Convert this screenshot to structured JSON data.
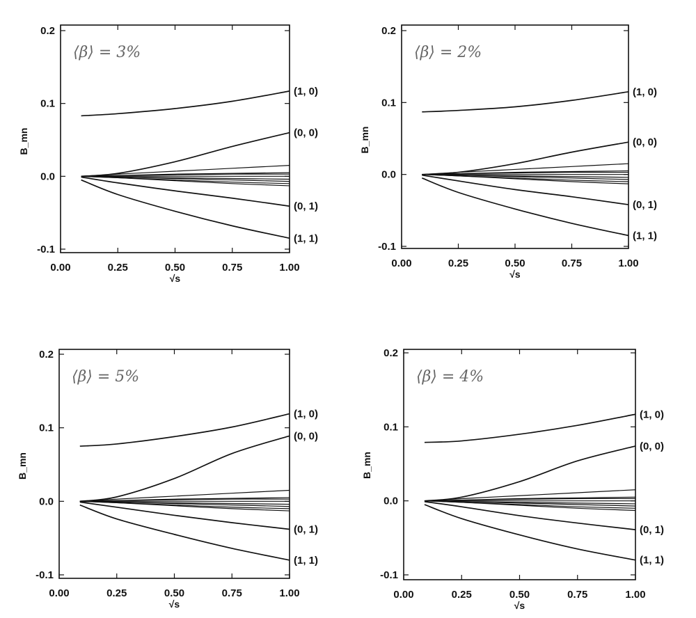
{
  "chart_data": [
    {
      "type": "line",
      "title": "⟨β⟩ = 3%",
      "xlabel": "√s",
      "ylabel": "B_mn",
      "xlim": [
        0,
        1
      ],
      "ylim": [
        -0.1,
        0.2
      ],
      "xticks": [
        "0.00",
        "0.25",
        "0.50",
        "0.75",
        "1.00"
      ],
      "yticks": [
        "-0.1",
        "0.0",
        "0.1",
        "0.2"
      ],
      "x": [
        0.09,
        0.25,
        0.5,
        0.75,
        1.0
      ],
      "series": [
        {
          "name": "(1, 0)",
          "labeled": true,
          "values": [
            0.083,
            0.086,
            0.093,
            0.103,
            0.117
          ]
        },
        {
          "name": "(0, 0)",
          "labeled": true,
          "values": [
            0.0,
            0.004,
            0.02,
            0.041,
            0.06
          ]
        },
        {
          "name": "(0, 1)",
          "labeled": true,
          "values": [
            -0.001,
            -0.009,
            -0.02,
            -0.03,
            -0.041
          ]
        },
        {
          "name": "(1, 1)",
          "labeled": true,
          "values": [
            -0.005,
            -0.025,
            -0.048,
            -0.068,
            -0.085
          ]
        },
        {
          "name": "other",
          "labeled": false,
          "values": [
            0,
            0.003,
            0.007,
            0.011,
            0.015
          ]
        },
        {
          "name": "other",
          "labeled": false,
          "values": [
            0,
            0.001,
            0.003,
            0.004,
            0.005
          ]
        },
        {
          "name": "other",
          "labeled": false,
          "values": [
            0,
            0.001,
            0.002,
            0.003,
            0.003
          ]
        },
        {
          "name": "other",
          "labeled": false,
          "values": [
            0,
            0,
            0,
            0,
            0
          ]
        },
        {
          "name": "other",
          "labeled": false,
          "values": [
            0,
            -0.001,
            -0.002,
            -0.003,
            -0.004
          ]
        },
        {
          "name": "other",
          "labeled": false,
          "values": [
            0,
            -0.001,
            -0.003,
            -0.005,
            -0.007
          ]
        },
        {
          "name": "other",
          "labeled": false,
          "values": [
            0,
            -0.002,
            -0.005,
            -0.008,
            -0.01
          ]
        },
        {
          "name": "other",
          "labeled": false,
          "values": [
            0,
            -0.002,
            -0.006,
            -0.01,
            -0.013
          ]
        }
      ]
    },
    {
      "type": "line",
      "title": "⟨β⟩ = 2%",
      "xlabel": "√s",
      "ylabel": "B_mn",
      "xlim": [
        0,
        1
      ],
      "ylim": [
        -0.1,
        0.2
      ],
      "xticks": [
        "0.00",
        "0.25",
        "0.50",
        "0.75",
        "1.00"
      ],
      "yticks": [
        "-0.1",
        "0.0",
        "0.1",
        "0.2"
      ],
      "x": [
        0.09,
        0.25,
        0.5,
        0.75,
        1.0
      ],
      "series": [
        {
          "name": "(1, 0)",
          "labeled": true,
          "values": [
            0.087,
            0.089,
            0.094,
            0.103,
            0.115
          ]
        },
        {
          "name": "(0, 0)",
          "labeled": true,
          "values": [
            0.0,
            0.003,
            0.015,
            0.031,
            0.045
          ]
        },
        {
          "name": "(0, 1)",
          "labeled": true,
          "values": [
            -0.001,
            -0.009,
            -0.021,
            -0.031,
            -0.042
          ]
        },
        {
          "name": "(1, 1)",
          "labeled": true,
          "values": [
            -0.005,
            -0.025,
            -0.048,
            -0.068,
            -0.085
          ]
        },
        {
          "name": "other",
          "labeled": false,
          "values": [
            0,
            0.003,
            0.007,
            0.011,
            0.015
          ]
        },
        {
          "name": "other",
          "labeled": false,
          "values": [
            0,
            0.001,
            0.003,
            0.004,
            0.005
          ]
        },
        {
          "name": "other",
          "labeled": false,
          "values": [
            0,
            0.001,
            0.002,
            0.003,
            0.003
          ]
        },
        {
          "name": "other",
          "labeled": false,
          "values": [
            0,
            0,
            0,
            0,
            0
          ]
        },
        {
          "name": "other",
          "labeled": false,
          "values": [
            0,
            -0.001,
            -0.002,
            -0.003,
            -0.004
          ]
        },
        {
          "name": "other",
          "labeled": false,
          "values": [
            0,
            -0.001,
            -0.003,
            -0.005,
            -0.007
          ]
        },
        {
          "name": "other",
          "labeled": false,
          "values": [
            0,
            -0.002,
            -0.005,
            -0.008,
            -0.01
          ]
        },
        {
          "name": "other",
          "labeled": false,
          "values": [
            0,
            -0.002,
            -0.006,
            -0.01,
            -0.013
          ]
        }
      ]
    },
    {
      "type": "line",
      "title": "⟨β⟩ = 5%",
      "xlabel": "√s",
      "ylabel": "B_mn",
      "xlim": [
        0,
        1
      ],
      "ylim": [
        -0.1,
        0.2
      ],
      "xticks": [
        "0.00",
        "0.25",
        "0.50",
        "0.75",
        "1.00"
      ],
      "yticks": [
        "-0.1",
        "0.0",
        "0.1",
        "0.2"
      ],
      "x": [
        0.09,
        0.25,
        0.5,
        0.75,
        1.0
      ],
      "series": [
        {
          "name": "(1, 0)",
          "labeled": true,
          "values": [
            0.075,
            0.078,
            0.088,
            0.101,
            0.119
          ]
        },
        {
          "name": "(0, 0)",
          "labeled": true,
          "values": [
            0.0,
            0.006,
            0.031,
            0.065,
            0.089
          ]
        },
        {
          "name": "(0, 1)",
          "labeled": true,
          "values": [
            -0.001,
            -0.008,
            -0.019,
            -0.029,
            -0.038
          ]
        },
        {
          "name": "(1, 1)",
          "labeled": true,
          "values": [
            -0.005,
            -0.024,
            -0.045,
            -0.064,
            -0.08
          ]
        },
        {
          "name": "other",
          "labeled": false,
          "values": [
            0,
            0.003,
            0.007,
            0.011,
            0.015
          ]
        },
        {
          "name": "other",
          "labeled": false,
          "values": [
            0,
            0.001,
            0.003,
            0.004,
            0.005
          ]
        },
        {
          "name": "other",
          "labeled": false,
          "values": [
            0,
            0.001,
            0.002,
            0.003,
            0.003
          ]
        },
        {
          "name": "other",
          "labeled": false,
          "values": [
            0,
            0,
            0,
            0,
            0
          ]
        },
        {
          "name": "other",
          "labeled": false,
          "values": [
            0,
            -0.001,
            -0.002,
            -0.003,
            -0.004
          ]
        },
        {
          "name": "other",
          "labeled": false,
          "values": [
            0,
            -0.001,
            -0.003,
            -0.005,
            -0.007
          ]
        },
        {
          "name": "other",
          "labeled": false,
          "values": [
            0,
            -0.002,
            -0.005,
            -0.008,
            -0.01
          ]
        },
        {
          "name": "other",
          "labeled": false,
          "values": [
            0,
            -0.002,
            -0.006,
            -0.01,
            -0.013
          ]
        }
      ]
    },
    {
      "type": "line",
      "title": "⟨β⟩ = 4%",
      "xlabel": "√s",
      "ylabel": "B_mn",
      "xlim": [
        0,
        1
      ],
      "ylim": [
        -0.1,
        0.2
      ],
      "xticks": [
        "0.00",
        "0.25",
        "0.50",
        "0.75",
        "1.00"
      ],
      "yticks": [
        "-0.1",
        "0.0",
        "0.1",
        "0.2"
      ],
      "x": [
        0.09,
        0.25,
        0.5,
        0.75,
        1.0
      ],
      "series": [
        {
          "name": "(1, 0)",
          "labeled": true,
          "values": [
            0.079,
            0.081,
            0.09,
            0.102,
            0.117
          ]
        },
        {
          "name": "(0, 0)",
          "labeled": true,
          "values": [
            0.0,
            0.005,
            0.026,
            0.054,
            0.074
          ]
        },
        {
          "name": "(0, 1)",
          "labeled": true,
          "values": [
            -0.001,
            -0.008,
            -0.02,
            -0.03,
            -0.039
          ]
        },
        {
          "name": "(1, 1)",
          "labeled": true,
          "values": [
            -0.005,
            -0.024,
            -0.046,
            -0.065,
            -0.08
          ]
        },
        {
          "name": "other",
          "labeled": false,
          "values": [
            0,
            0.003,
            0.007,
            0.011,
            0.015
          ]
        },
        {
          "name": "other",
          "labeled": false,
          "values": [
            0,
            0.001,
            0.003,
            0.004,
            0.005
          ]
        },
        {
          "name": "other",
          "labeled": false,
          "values": [
            0,
            0.001,
            0.002,
            0.003,
            0.003
          ]
        },
        {
          "name": "other",
          "labeled": false,
          "values": [
            0,
            0,
            0,
            0,
            0
          ]
        },
        {
          "name": "other",
          "labeled": false,
          "values": [
            0,
            -0.001,
            -0.002,
            -0.003,
            -0.004
          ]
        },
        {
          "name": "other",
          "labeled": false,
          "values": [
            0,
            -0.001,
            -0.003,
            -0.005,
            -0.007
          ]
        },
        {
          "name": "other",
          "labeled": false,
          "values": [
            0,
            -0.002,
            -0.005,
            -0.008,
            -0.01
          ]
        },
        {
          "name": "other",
          "labeled": false,
          "values": [
            0,
            -0.002,
            -0.006,
            -0.01,
            -0.013
          ]
        }
      ]
    }
  ]
}
